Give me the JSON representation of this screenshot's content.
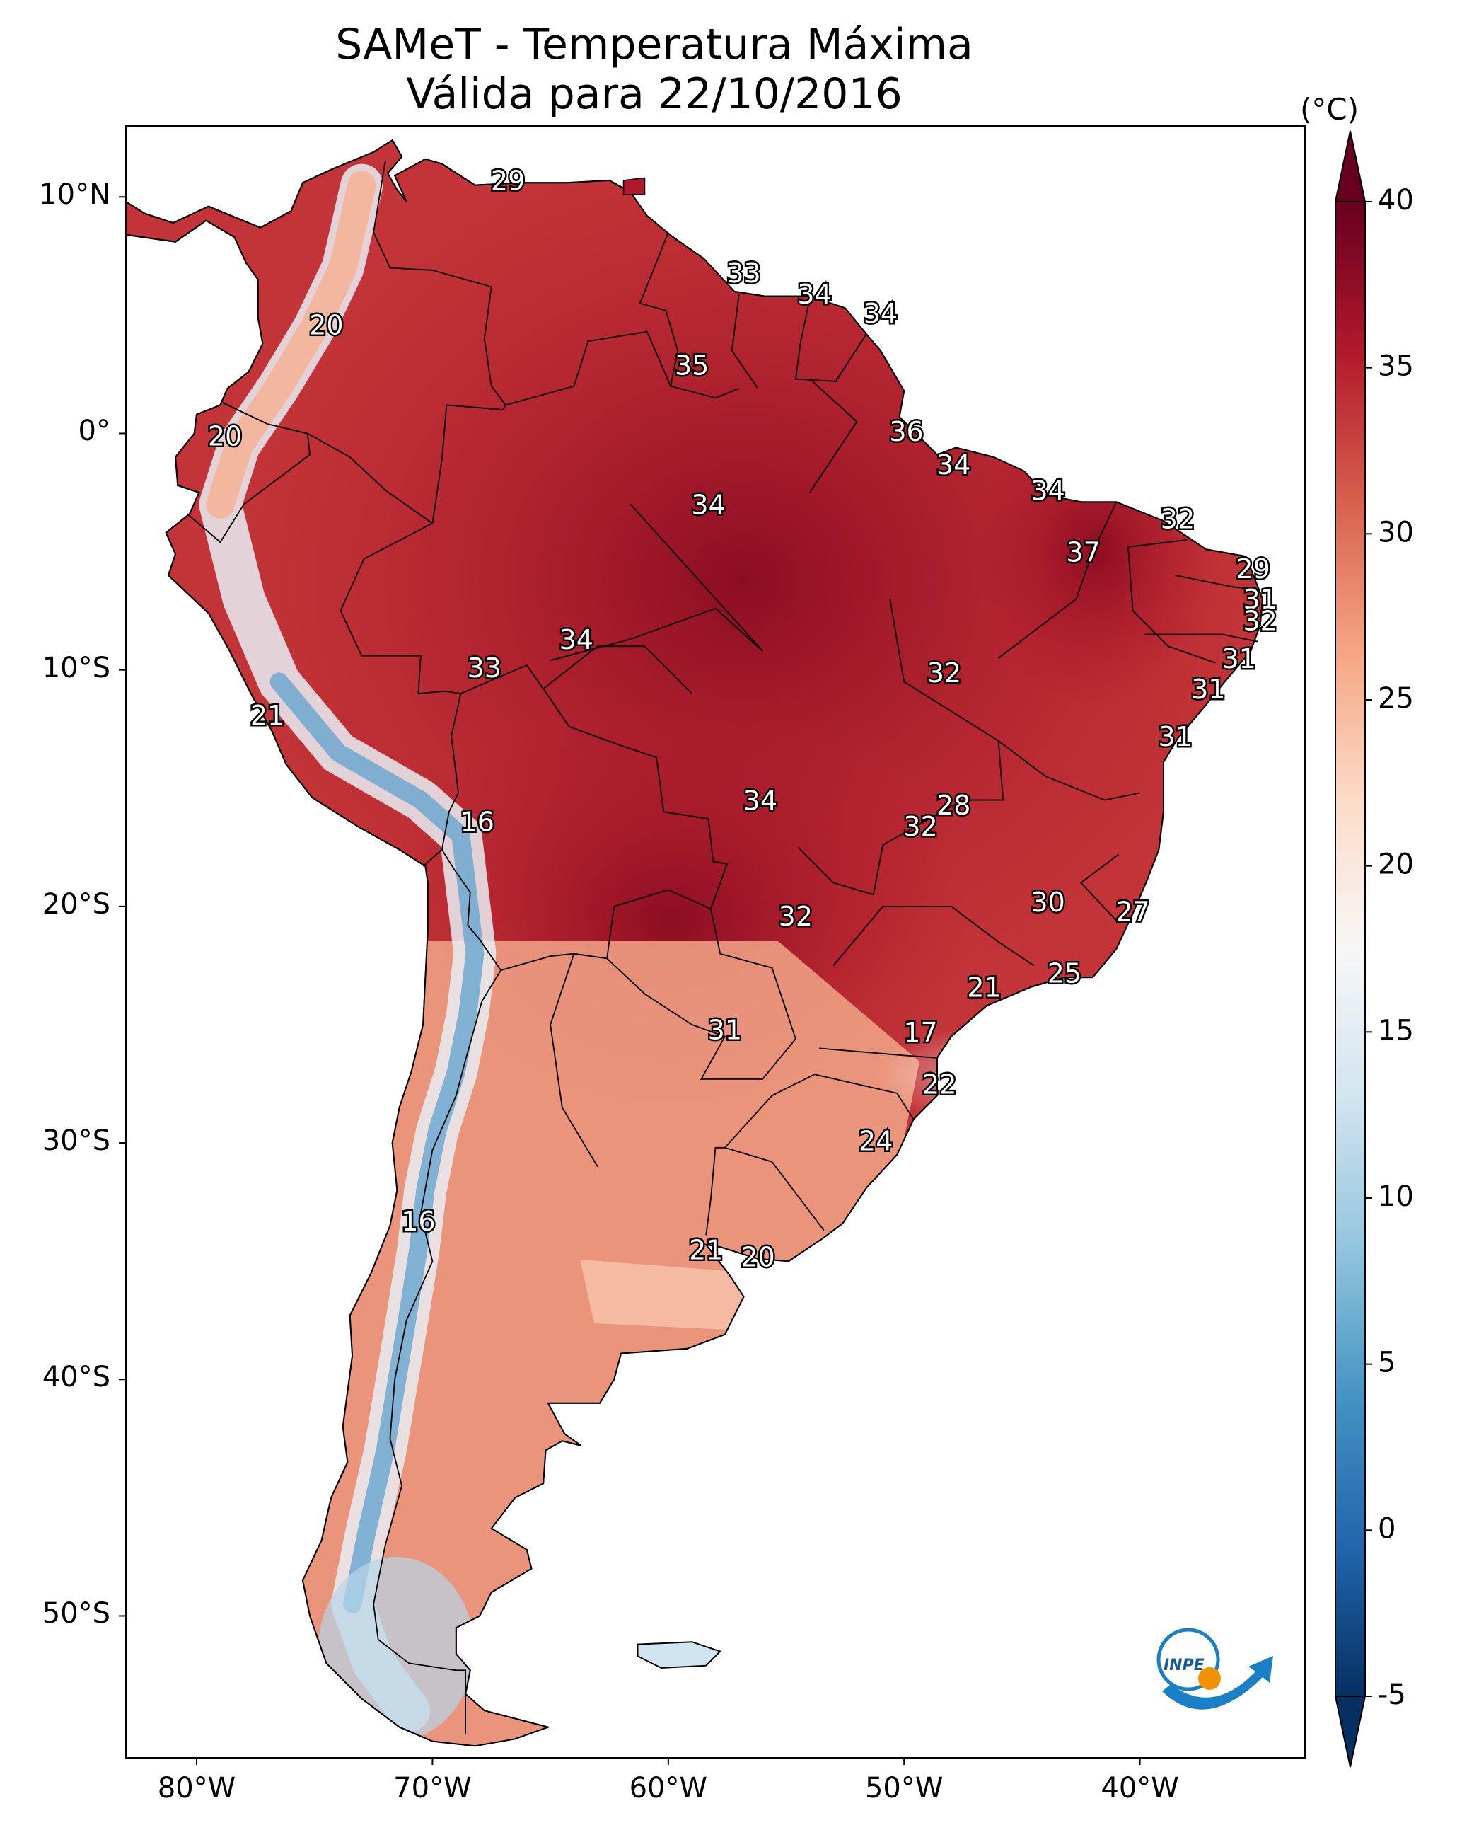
{
  "title": {
    "line1": "SAMeT - Temperatura Máxima",
    "line2": "Válida para 22/10/2016"
  },
  "map": {
    "lon_range": [
      -83,
      -33
    ],
    "lat_range": [
      -56,
      13
    ],
    "lat_ticks": [
      {
        "value": 10,
        "label": "10°N"
      },
      {
        "value": 0,
        "label": "0°"
      },
      {
        "value": -10,
        "label": "10°S"
      },
      {
        "value": -20,
        "label": "20°S"
      },
      {
        "value": -30,
        "label": "30°S"
      },
      {
        "value": -40,
        "label": "40°S"
      },
      {
        "value": -50,
        "label": "50°S"
      }
    ],
    "lon_ticks": [
      {
        "value": -80,
        "label": "80°W"
      },
      {
        "value": -70,
        "label": "70°W"
      },
      {
        "value": -60,
        "label": "60°W"
      },
      {
        "value": -50,
        "label": "50°W"
      },
      {
        "value": -40,
        "label": "40°W"
      }
    ],
    "station_labels": [
      {
        "lon": -66.8,
        "lat": 10.6,
        "value": "29"
      },
      {
        "lon": -74.5,
        "lat": 4.5,
        "value": "20"
      },
      {
        "lon": -78.8,
        "lat": -0.2,
        "value": "20"
      },
      {
        "lon": -56.8,
        "lat": 6.7,
        "value": "33"
      },
      {
        "lon": -53.8,
        "lat": 5.8,
        "value": "34"
      },
      {
        "lon": -51.0,
        "lat": 5.0,
        "value": "34"
      },
      {
        "lon": -59.0,
        "lat": 2.8,
        "value": "35"
      },
      {
        "lon": -49.9,
        "lat": 0.0,
        "value": "36"
      },
      {
        "lon": -58.3,
        "lat": -3.1,
        "value": "34"
      },
      {
        "lon": -47.9,
        "lat": -1.4,
        "value": "34"
      },
      {
        "lon": -43.9,
        "lat": -2.5,
        "value": "34"
      },
      {
        "lon": -38.4,
        "lat": -3.7,
        "value": "32"
      },
      {
        "lon": -42.4,
        "lat": -5.1,
        "value": "37"
      },
      {
        "lon": -35.2,
        "lat": -5.8,
        "value": "29"
      },
      {
        "lon": -34.9,
        "lat": -7.1,
        "value": "31"
      },
      {
        "lon": -34.9,
        "lat": -8.0,
        "value": "32"
      },
      {
        "lon": -35.8,
        "lat": -9.6,
        "value": "31"
      },
      {
        "lon": -37.1,
        "lat": -10.9,
        "value": "31"
      },
      {
        "lon": -38.5,
        "lat": -12.9,
        "value": "31"
      },
      {
        "lon": -63.9,
        "lat": -8.8,
        "value": "34"
      },
      {
        "lon": -67.8,
        "lat": -10.0,
        "value": "33"
      },
      {
        "lon": -48.3,
        "lat": -10.2,
        "value": "32"
      },
      {
        "lon": -77.0,
        "lat": -12.0,
        "value": "21"
      },
      {
        "lon": -56.1,
        "lat": -15.6,
        "value": "34"
      },
      {
        "lon": -47.9,
        "lat": -15.8,
        "value": "28"
      },
      {
        "lon": -49.3,
        "lat": -16.7,
        "value": "32"
      },
      {
        "lon": -68.1,
        "lat": -16.5,
        "value": "16"
      },
      {
        "lon": -43.9,
        "lat": -19.9,
        "value": "30"
      },
      {
        "lon": -40.3,
        "lat": -20.3,
        "value": "27"
      },
      {
        "lon": -54.6,
        "lat": -20.5,
        "value": "32"
      },
      {
        "lon": -43.2,
        "lat": -22.9,
        "value": "25"
      },
      {
        "lon": -46.6,
        "lat": -23.5,
        "value": "21"
      },
      {
        "lon": -57.6,
        "lat": -25.3,
        "value": "31"
      },
      {
        "lon": -49.3,
        "lat": -25.4,
        "value": "17"
      },
      {
        "lon": -48.5,
        "lat": -27.6,
        "value": "22"
      },
      {
        "lon": -51.2,
        "lat": -30.0,
        "value": "24"
      },
      {
        "lon": -70.6,
        "lat": -33.4,
        "value": "16"
      },
      {
        "lon": -58.4,
        "lat": -34.6,
        "value": "21"
      },
      {
        "lon": -56.2,
        "lat": -34.9,
        "value": "20"
      }
    ]
  },
  "colorbar": {
    "unit": "(°C)",
    "range": [
      -5,
      40
    ],
    "extend": "both",
    "ticks": [
      {
        "value": 40,
        "label": "40"
      },
      {
        "value": 35,
        "label": "35"
      },
      {
        "value": 30,
        "label": "30"
      },
      {
        "value": 25,
        "label": "25"
      },
      {
        "value": 20,
        "label": "20"
      },
      {
        "value": 15,
        "label": "15"
      },
      {
        "value": 10,
        "label": "10"
      },
      {
        "value": 5,
        "label": "5"
      },
      {
        "value": 0,
        "label": "0"
      },
      {
        "value": -5,
        "label": "-5"
      }
    ],
    "colors": [
      "#053061",
      "#2166ac",
      "#4393c3",
      "#92c5de",
      "#d1e5f0",
      "#f7f7f7",
      "#fddbc7",
      "#f4a582",
      "#d6604d",
      "#b2182b",
      "#67001f"
    ]
  },
  "logo": {
    "text": "INPE"
  }
}
